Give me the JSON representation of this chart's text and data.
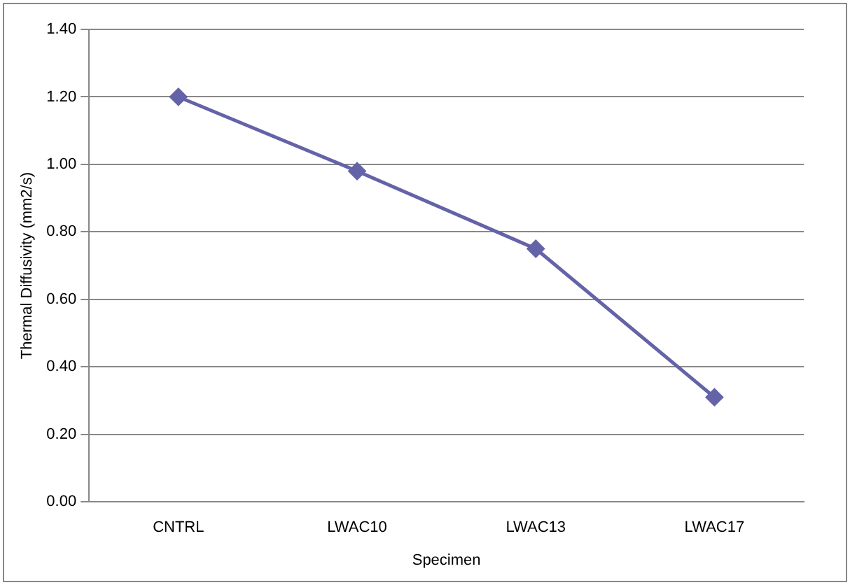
{
  "chart_data": {
    "type": "line",
    "xlabel": "Specimen",
    "ylabel": "Thermal Diffusivity (mm2/s)",
    "categories": [
      "CNTRL",
      "LWAC10",
      "LWAC13",
      "LWAC17"
    ],
    "series": [
      {
        "color": "#6563a8",
        "values": [
          1.2,
          0.98,
          0.75,
          0.31
        ]
      }
    ],
    "ylim": [
      0,
      1.4
    ],
    "yticks": [
      {
        "value": 0,
        "label": "0.00"
      },
      {
        "value": 0.2,
        "label": "0.20"
      },
      {
        "value": 0.4,
        "label": "0.40"
      },
      {
        "value": 0.6,
        "label": "0.60"
      },
      {
        "value": 0.8,
        "label": "0.80"
      },
      {
        "value": 1,
        "label": "1.00"
      },
      {
        "value": 1.2,
        "label": "1.20"
      },
      {
        "value": 1.4,
        "label": "1.40"
      }
    ],
    "grid": "y",
    "legend": false,
    "marker": "diamond",
    "line_style": "solid"
  }
}
